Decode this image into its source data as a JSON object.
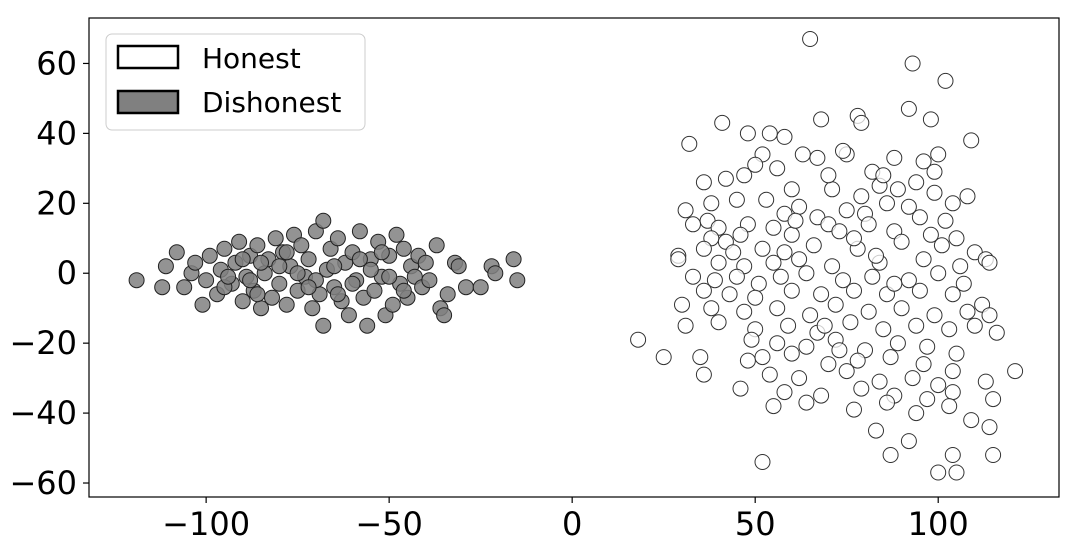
{
  "chart_data": {
    "type": "scatter",
    "title": "",
    "xlabel": "",
    "ylabel": "",
    "xlim": [
      -132,
      133
    ],
    "ylim": [
      -64,
      73
    ],
    "x_ticks": [
      -100,
      -50,
      0,
      50,
      100
    ],
    "y_ticks": [
      -60,
      -40,
      -20,
      0,
      20,
      40,
      60
    ],
    "x_tick_labels": [
      "−100",
      "−50",
      "0",
      "50",
      "100"
    ],
    "y_tick_labels": [
      "−60",
      "−40",
      "−20",
      "0",
      "20",
      "40",
      "60"
    ],
    "grid": false,
    "legend": {
      "placement": "top-left",
      "entries": [
        {
          "label": "Honest",
          "color": "#ffffff"
        },
        {
          "label": "Dishonest",
          "color": "#808080"
        }
      ]
    },
    "series": [
      {
        "name": "Honest",
        "color": "#ffffff",
        "edge_color": "#333333",
        "points": [
          [
            65,
            67
          ],
          [
            93,
            60
          ],
          [
            102,
            55
          ],
          [
            92,
            47
          ],
          [
            98,
            44
          ],
          [
            68,
            44
          ],
          [
            41,
            43
          ],
          [
            78,
            45
          ],
          [
            79,
            43
          ],
          [
            32,
            37
          ],
          [
            109,
            38
          ],
          [
            48,
            40
          ],
          [
            54,
            40
          ],
          [
            58,
            39
          ],
          [
            100,
            34
          ],
          [
            96,
            32
          ],
          [
            67,
            33
          ],
          [
            88,
            33
          ],
          [
            75,
            34
          ],
          [
            74,
            35
          ],
          [
            63,
            34
          ],
          [
            52,
            34
          ],
          [
            50,
            31
          ],
          [
            56,
            30
          ],
          [
            82,
            29
          ],
          [
            99,
            29
          ],
          [
            47,
            28
          ],
          [
            36,
            26
          ],
          [
            42,
            27
          ],
          [
            94,
            26
          ],
          [
            108,
            22
          ],
          [
            99,
            23
          ],
          [
            60,
            24
          ],
          [
            71,
            24
          ],
          [
            84,
            25
          ],
          [
            89,
            24
          ],
          [
            38,
            20
          ],
          [
            45,
            21
          ],
          [
            53,
            21
          ],
          [
            79,
            22
          ],
          [
            62,
            19
          ],
          [
            86,
            20
          ],
          [
            92,
            19
          ],
          [
            104,
            20
          ],
          [
            31,
            18
          ],
          [
            37,
            15
          ],
          [
            58,
            17
          ],
          [
            67,
            16
          ],
          [
            75,
            18
          ],
          [
            80,
            17
          ],
          [
            33,
            14
          ],
          [
            40,
            13
          ],
          [
            48,
            14
          ],
          [
            55,
            13
          ],
          [
            70,
            14
          ],
          [
            81,
            14
          ],
          [
            95,
            16
          ],
          [
            102,
            15
          ],
          [
            38,
            10
          ],
          [
            42,
            9
          ],
          [
            46,
            11
          ],
          [
            60,
            11
          ],
          [
            73,
            12
          ],
          [
            88,
            12
          ],
          [
            98,
            11
          ],
          [
            105,
            10
          ],
          [
            29,
            5
          ],
          [
            36,
            7
          ],
          [
            44,
            6
          ],
          [
            52,
            7
          ],
          [
            58,
            6
          ],
          [
            66,
            8
          ],
          [
            78,
            7
          ],
          [
            90,
            9
          ],
          [
            101,
            8
          ],
          [
            110,
            6
          ],
          [
            113,
            4
          ],
          [
            29,
            4
          ],
          [
            40,
            3
          ],
          [
            47,
            2
          ],
          [
            55,
            3
          ],
          [
            62,
            4
          ],
          [
            71,
            2
          ],
          [
            84,
            3
          ],
          [
            96,
            4
          ],
          [
            106,
            2
          ],
          [
            114,
            3
          ],
          [
            33,
            -1
          ],
          [
            39,
            -2
          ],
          [
            45,
            -1
          ],
          [
            51,
            -3
          ],
          [
            57,
            -1
          ],
          [
            64,
            0
          ],
          [
            74,
            -2
          ],
          [
            82,
            -1
          ],
          [
            92,
            -2
          ],
          [
            100,
            0
          ],
          [
            107,
            -3
          ],
          [
            36,
            -5
          ],
          [
            43,
            -6
          ],
          [
            50,
            -7
          ],
          [
            60,
            -5
          ],
          [
            68,
            -6
          ],
          [
            77,
            -5
          ],
          [
            86,
            -6
          ],
          [
            95,
            -5
          ],
          [
            104,
            -6
          ],
          [
            112,
            -9
          ],
          [
            30,
            -9
          ],
          [
            38,
            -10
          ],
          [
            47,
            -11
          ],
          [
            56,
            -10
          ],
          [
            65,
            -12
          ],
          [
            72,
            -9
          ],
          [
            81,
            -11
          ],
          [
            90,
            -10
          ],
          [
            99,
            -12
          ],
          [
            108,
            -11
          ],
          [
            114,
            -12
          ],
          [
            31,
            -15
          ],
          [
            40,
            -14
          ],
          [
            50,
            -16
          ],
          [
            59,
            -15
          ],
          [
            67,
            -17
          ],
          [
            76,
            -14
          ],
          [
            85,
            -16
          ],
          [
            94,
            -15
          ],
          [
            103,
            -16
          ],
          [
            110,
            -15
          ],
          [
            116,
            -17
          ],
          [
            18,
            -19
          ],
          [
            49,
            -19
          ],
          [
            56,
            -20
          ],
          [
            64,
            -21
          ],
          [
            72,
            -19
          ],
          [
            80,
            -22
          ],
          [
            89,
            -20
          ],
          [
            97,
            -21
          ],
          [
            105,
            -23
          ],
          [
            25,
            -24
          ],
          [
            35,
            -24
          ],
          [
            48,
            -25
          ],
          [
            52,
            -24
          ],
          [
            60,
            -23
          ],
          [
            70,
            -26
          ],
          [
            78,
            -25
          ],
          [
            87,
            -24
          ],
          [
            96,
            -26
          ],
          [
            104,
            -28
          ],
          [
            121,
            -28
          ],
          [
            36,
            -29
          ],
          [
            54,
            -29
          ],
          [
            62,
            -30
          ],
          [
            75,
            -28
          ],
          [
            84,
            -31
          ],
          [
            93,
            -30
          ],
          [
            100,
            -32
          ],
          [
            113,
            -31
          ],
          [
            46,
            -33
          ],
          [
            58,
            -34
          ],
          [
            68,
            -35
          ],
          [
            79,
            -33
          ],
          [
            88,
            -35
          ],
          [
            97,
            -36
          ],
          [
            104,
            -34
          ],
          [
            115,
            -36
          ],
          [
            55,
            -38
          ],
          [
            64,
            -37
          ],
          [
            77,
            -39
          ],
          [
            86,
            -37
          ],
          [
            94,
            -40
          ],
          [
            103,
            -38
          ],
          [
            109,
            -42
          ],
          [
            114,
            -44
          ],
          [
            83,
            -45
          ],
          [
            92,
            -48
          ],
          [
            87,
            -52
          ],
          [
            104,
            -52
          ],
          [
            115,
            -52
          ],
          [
            52,
            -54
          ],
          [
            100,
            -57
          ],
          [
            105,
            -57
          ],
          [
            70,
            28
          ],
          [
            85,
            28
          ],
          [
            61,
            15
          ],
          [
            77,
            10
          ],
          [
            83,
            5
          ],
          [
            88,
            -3
          ],
          [
            69,
            -15
          ],
          [
            73,
            -22
          ]
        ]
      },
      {
        "name": "Dishonest",
        "color": "#808080",
        "edge_color": "#222222",
        "points": [
          [
            -119,
            -2
          ],
          [
            -112,
            -4
          ],
          [
            -111,
            2
          ],
          [
            -108,
            6
          ],
          [
            -106,
            -4
          ],
          [
            -104,
            0
          ],
          [
            -103,
            3
          ],
          [
            -101,
            -9
          ],
          [
            -100,
            -2
          ],
          [
            -99,
            5
          ],
          [
            -97,
            -6
          ],
          [
            -96,
            1
          ],
          [
            -95,
            7
          ],
          [
            -93,
            -3
          ],
          [
            -92,
            3
          ],
          [
            -91,
            9
          ],
          [
            -90,
            -8
          ],
          [
            -89,
            -1
          ],
          [
            -88,
            5
          ],
          [
            -87,
            -5
          ],
          [
            -86,
            8
          ],
          [
            -85,
            -10
          ],
          [
            -84,
            0
          ],
          [
            -83,
            4
          ],
          [
            -82,
            -7
          ],
          [
            -81,
            10
          ],
          [
            -80,
            -3
          ],
          [
            -79,
            6
          ],
          [
            -78,
            -9
          ],
          [
            -77,
            2
          ],
          [
            -76,
            11
          ],
          [
            -75,
            -5
          ],
          [
            -74,
            8
          ],
          [
            -73,
            -1
          ],
          [
            -72,
            4
          ],
          [
            -71,
            -10
          ],
          [
            -70,
            12
          ],
          [
            -69,
            -6
          ],
          [
            -68,
            15
          ],
          [
            -68,
            -15
          ],
          [
            -67,
            1
          ],
          [
            -66,
            7
          ],
          [
            -65,
            -4
          ],
          [
            -64,
            10
          ],
          [
            -63,
            -8
          ],
          [
            -62,
            3
          ],
          [
            -61,
            -12
          ],
          [
            -60,
            6
          ],
          [
            -59,
            -2
          ],
          [
            -58,
            12
          ],
          [
            -57,
            -7
          ],
          [
            -56,
            -15
          ],
          [
            -55,
            4
          ],
          [
            -54,
            -5
          ],
          [
            -53,
            9
          ],
          [
            -52,
            -1
          ],
          [
            -51,
            -12
          ],
          [
            -50,
            5
          ],
          [
            -49,
            -9
          ],
          [
            -48,
            11
          ],
          [
            -47,
            -3
          ],
          [
            -46,
            7
          ],
          [
            -45,
            -7
          ],
          [
            -44,
            2
          ],
          [
            -43,
            -1
          ],
          [
            -42,
            5
          ],
          [
            -41,
            -4
          ],
          [
            -40,
            3
          ],
          [
            -39,
            -2
          ],
          [
            -37,
            8
          ],
          [
            -36,
            -10
          ],
          [
            -35,
            -12
          ],
          [
            -34,
            -6
          ],
          [
            -32,
            3
          ],
          [
            -31,
            2
          ],
          [
            -29,
            -4
          ],
          [
            -25,
            -4
          ],
          [
            -22,
            2
          ],
          [
            -21,
            0
          ],
          [
            -16,
            4
          ],
          [
            -15,
            -2
          ],
          [
            -95,
            -4
          ],
          [
            -90,
            4
          ],
          [
            -85,
            3
          ],
          [
            -80,
            2
          ],
          [
            -75,
            0
          ],
          [
            -70,
            -2
          ],
          [
            -65,
            2
          ],
          [
            -60,
            -3
          ],
          [
            -55,
            1
          ],
          [
            -50,
            -1
          ],
          [
            -86,
            -6
          ],
          [
            -78,
            6
          ],
          [
            -72,
            -4
          ],
          [
            -64,
            -6
          ],
          [
            -58,
            4
          ],
          [
            -52,
            6
          ],
          [
            -46,
            -5
          ],
          [
            -94,
            -1
          ],
          [
            -88,
            -2
          ]
        ]
      }
    ]
  }
}
